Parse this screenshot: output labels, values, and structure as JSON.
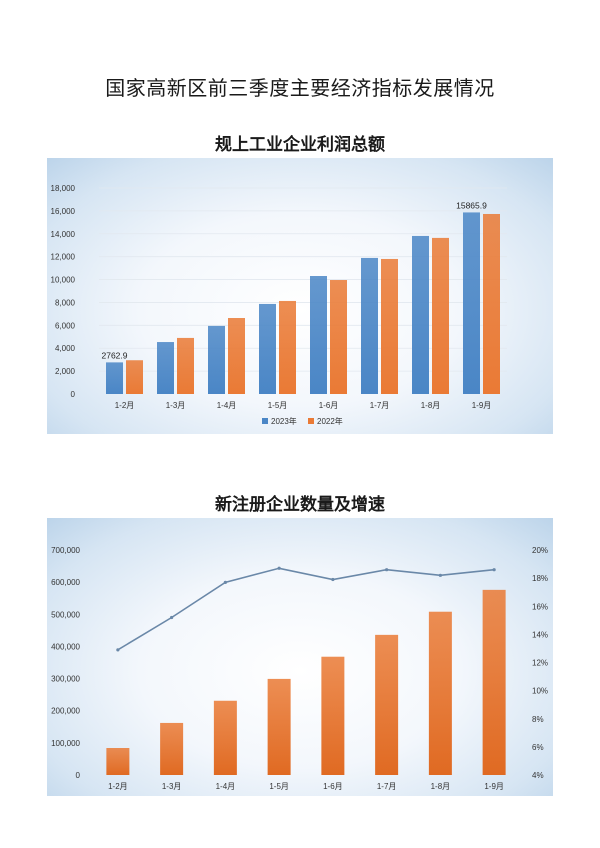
{
  "page": {
    "title": "国家高新区前三季度主要经济指标发展情况"
  },
  "chart_data": [
    {
      "type": "bar",
      "title": "规上工业企业利润总额",
      "xlabel": "",
      "ylabel": "",
      "categories": [
        "1-2月",
        "1-3月",
        "1-4月",
        "1-5月",
        "1-6月",
        "1-7月",
        "1-8月",
        "1-9月"
      ],
      "series": [
        {
          "name": "2023年",
          "color": "#4a86c6",
          "values": [
            2762.9,
            4540,
            5950,
            7870,
            10310,
            11890,
            13810,
            15865.9
          ]
        },
        {
          "name": "2022年",
          "color": "#ea7a35",
          "values": [
            2950,
            4900,
            6640,
            8130,
            9960,
            11800,
            13640,
            15730
          ]
        }
      ],
      "data_labels": [
        {
          "series": "2023年",
          "category": "1-2月",
          "text": "2762.9"
        },
        {
          "series": "2023年",
          "category": "1-9月",
          "text": "15865.9"
        }
      ],
      "ylim": [
        0,
        18000
      ],
      "yticks": [
        "0",
        "2,000",
        "4,000",
        "6,000",
        "8,000",
        "10,000",
        "12,000",
        "14,000",
        "16,000",
        "18,000"
      ],
      "grid": true,
      "legend_position": "bottom"
    },
    {
      "type": "bar",
      "title": "新注册企业数量及增速",
      "xlabel": "",
      "categories": [
        "1-2月",
        "1-3月",
        "1-4月",
        "1-5月",
        "1-6月",
        "1-7月",
        "1-8月",
        "1-9月"
      ],
      "series": [
        {
          "name": "新注册企业数量",
          "type": "bar",
          "axis": "left",
          "color": "#ea7a35",
          "values": [
            84000,
            162000,
            231000,
            299000,
            368000,
            436000,
            508000,
            576000
          ]
        },
        {
          "name": "增速",
          "type": "line",
          "axis": "right",
          "color": "#6a88a8",
          "values": [
            12.9,
            15.2,
            17.7,
            18.7,
            17.9,
            18.6,
            18.2,
            18.6
          ]
        }
      ],
      "ylim": [
        0,
        700000
      ],
      "yticks": [
        "0",
        "100,000",
        "200,000",
        "300,000",
        "400,000",
        "500,000",
        "600,000",
        "700,000"
      ],
      "y2lim": [
        4,
        20
      ],
      "y2ticks": [
        "4%",
        "6%",
        "8%",
        "10%",
        "12%",
        "14%",
        "16%",
        "18%",
        "20%"
      ],
      "grid": false,
      "legend_position": "none"
    }
  ]
}
